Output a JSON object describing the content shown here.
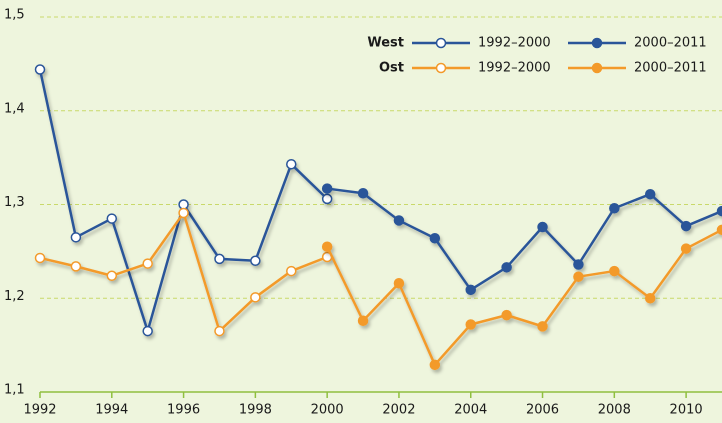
{
  "chart_data": {
    "type": "line",
    "x": [
      1992,
      1993,
      1994,
      1995,
      1996,
      1997,
      1998,
      1999,
      2000,
      2001,
      2002,
      2003,
      2004,
      2005,
      2006,
      2007,
      2008,
      2009,
      2010,
      2011
    ],
    "xlim": [
      1992,
      2011
    ],
    "xticks": [
      1992,
      1994,
      1996,
      1998,
      2000,
      2002,
      2004,
      2006,
      2008,
      2010
    ],
    "ylim": [
      1.1,
      1.5
    ],
    "yticks": [
      {
        "value": 1.1,
        "label": "1,1"
      },
      {
        "value": 1.2,
        "label": "1,2"
      },
      {
        "value": 1.3,
        "label": "1,3"
      },
      {
        "value": 1.4,
        "label": "1,4"
      },
      {
        "value": 1.5,
        "label": "1,5"
      }
    ],
    "grid": true,
    "legend": "top-right",
    "series": [
      {
        "group": "West",
        "name": "1992–2000",
        "color": "#2a5599",
        "marker": "open",
        "values": [
          1.444,
          1.265,
          1.285,
          1.165,
          1.3,
          1.242,
          1.24,
          1.343,
          1.306,
          null,
          null,
          null,
          null,
          null,
          null,
          null,
          null,
          null,
          null,
          null
        ]
      },
      {
        "group": "West",
        "name": "2000–2011",
        "color": "#2a5599",
        "marker": "filled",
        "values": [
          null,
          null,
          null,
          null,
          null,
          null,
          null,
          null,
          1.317,
          1.312,
          1.283,
          1.264,
          1.209,
          1.233,
          1.276,
          1.236,
          1.296,
          1.311,
          1.277,
          1.293
        ]
      },
      {
        "group": "Ost",
        "name": "1992–2000",
        "color": "#f39a2a",
        "marker": "open",
        "values": [
          1.243,
          1.234,
          1.224,
          1.237,
          1.291,
          1.165,
          1.201,
          1.229,
          1.244,
          null,
          null,
          null,
          null,
          null,
          null,
          null,
          null,
          null,
          null,
          null
        ]
      },
      {
        "group": "Ost",
        "name": "2000–2011",
        "color": "#f39a2a",
        "marker": "filled",
        "values": [
          null,
          null,
          null,
          null,
          null,
          null,
          null,
          null,
          1.255,
          1.176,
          1.216,
          1.129,
          1.172,
          1.182,
          1.17,
          1.223,
          1.229,
          1.2,
          1.253,
          1.273
        ]
      }
    ]
  }
}
